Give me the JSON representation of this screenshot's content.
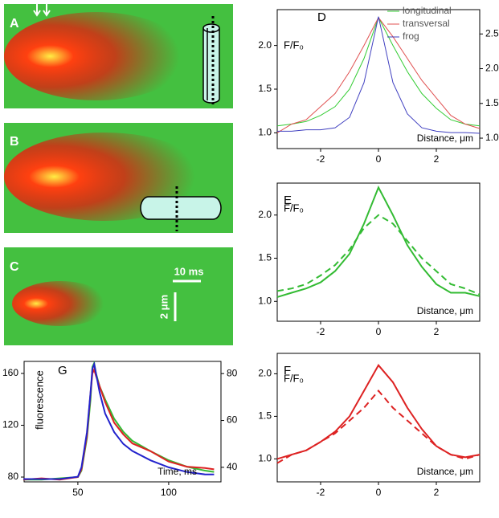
{
  "image_panels": {
    "labels": [
      "A",
      "B",
      "C"
    ],
    "time_scale": "10 ms",
    "space_scale": "2 μm"
  },
  "chart_data": [
    {
      "type": "line",
      "title": "D",
      "ylabel": "F/F₀",
      "xlabel": "Distance, μm",
      "legend": "upper right",
      "x": [
        -3.5,
        -3,
        -2.5,
        -2,
        -1.5,
        -1,
        -0.5,
        0,
        0.5,
        1,
        1.5,
        2,
        2.5,
        3,
        3.5
      ],
      "xlim": [
        -3.5,
        3.5
      ],
      "xticks": [
        -2,
        0,
        2
      ],
      "ylim": [
        0.82,
        2.41
      ],
      "yticks": [
        {
          "value": 1,
          "label": "1.0"
        },
        {
          "value": 1.5,
          "label": "1.5"
        },
        {
          "value": 2,
          "label": "2.0"
        }
      ],
      "y2lim": [
        0.85,
        2.85
      ],
      "y2ticks": [
        {
          "value": 1,
          "label": "1.0"
        },
        {
          "value": 1.5,
          "label": "1.5"
        },
        {
          "value": 2,
          "label": "2.0"
        },
        {
          "value": 2.5,
          "label": "2.5"
        }
      ],
      "series": [
        {
          "name": "longitudinal",
          "color": "#33cc33",
          "values": [
            1.08,
            1.1,
            1.13,
            1.2,
            1.3,
            1.5,
            1.85,
            2.32,
            2.0,
            1.7,
            1.45,
            1.28,
            1.15,
            1.1,
            1.08
          ]
        },
        {
          "name": "transversal",
          "color": "#e05050",
          "values": [
            1.0,
            1.1,
            1.15,
            1.3,
            1.45,
            1.7,
            2.0,
            2.32,
            2.1,
            1.85,
            1.6,
            1.4,
            1.2,
            1.1,
            1.05
          ]
        },
        {
          "name": "frog",
          "color": "#4040c0",
          "axis": "y2",
          "values": [
            1.1,
            1.1,
            1.12,
            1.12,
            1.15,
            1.3,
            1.8,
            2.75,
            1.8,
            1.35,
            1.15,
            1.1,
            1.08,
            1.08,
            1.07
          ]
        }
      ]
    },
    {
      "type": "line",
      "title": "E",
      "ylabel": "F/F₀",
      "xlabel": "Distance, μm",
      "x": [
        -3.5,
        -3,
        -2.5,
        -2,
        -1.5,
        -1,
        -0.5,
        0,
        0.5,
        1,
        1.5,
        2,
        2.5,
        3,
        3.5
      ],
      "xlim": [
        -3.5,
        3.5
      ],
      "xticks": [
        -2,
        0,
        2
      ],
      "ylim": [
        0.77,
        2.37
      ],
      "yticks": [
        {
          "value": 1,
          "label": "1.0"
        },
        {
          "value": 1.5,
          "label": "1.5"
        },
        {
          "value": 2,
          "label": "2.0"
        }
      ],
      "series": [
        {
          "color": "#33bb33",
          "values": [
            1.05,
            1.1,
            1.15,
            1.22,
            1.35,
            1.55,
            1.9,
            2.32,
            2.0,
            1.65,
            1.4,
            1.2,
            1.1,
            1.1,
            1.06
          ]
        },
        {
          "color": "#33bb33",
          "dashed": true,
          "values": [
            1.12,
            1.15,
            1.2,
            1.3,
            1.42,
            1.6,
            1.85,
            2.0,
            1.9,
            1.7,
            1.5,
            1.35,
            1.2,
            1.15,
            1.08
          ]
        }
      ]
    },
    {
      "type": "line",
      "title": "F",
      "ylabel": "F/F₀",
      "xlabel": "Distance, μm",
      "x": [
        -3.5,
        -3,
        -2.5,
        -2,
        -1.5,
        -1,
        -0.5,
        0,
        0.5,
        1,
        1.5,
        2,
        2.5,
        3,
        3.5
      ],
      "xlim": [
        -3.5,
        3.5
      ],
      "xticks": [
        -2,
        0,
        2
      ],
      "ylim": [
        0.73,
        2.24
      ],
      "yticks": [
        {
          "value": 1,
          "label": "1.0"
        },
        {
          "value": 1.5,
          "label": "1.5"
        },
        {
          "value": 2,
          "label": "2.0"
        }
      ],
      "series": [
        {
          "color": "#dd2222",
          "values": [
            1.0,
            1.05,
            1.1,
            1.2,
            1.32,
            1.5,
            1.8,
            2.1,
            1.9,
            1.6,
            1.35,
            1.15,
            1.05,
            1.02,
            1.05
          ]
        },
        {
          "color": "#dd2222",
          "dashed": true,
          "values": [
            0.95,
            1.05,
            1.1,
            1.2,
            1.3,
            1.45,
            1.6,
            1.8,
            1.6,
            1.45,
            1.3,
            1.15,
            1.05,
            1.0,
            1.05
          ]
        }
      ]
    },
    {
      "type": "line",
      "title": "G",
      "ylabel": "fluorescence",
      "xlabel": "Time, ms",
      "x": [
        20,
        30,
        40,
        50,
        52,
        55,
        57,
        58,
        59,
        60,
        62,
        65,
        70,
        75,
        80,
        90,
        100,
        110,
        120,
        125
      ],
      "xlim": [
        20.4,
        128.8
      ],
      "xticks": [
        50,
        100
      ],
      "ylim": [
        76.3,
        169.3
      ],
      "yticks": [
        80,
        120,
        160
      ],
      "y2lim": [
        33.8,
        85.2
      ],
      "y2ticks": [
        40,
        60,
        80
      ],
      "series": [
        {
          "color": "#33bb33",
          "values": [
            78,
            78,
            79,
            80,
            85,
            110,
            140,
            165,
            168,
            160,
            150,
            140,
            125,
            115,
            108,
            100,
            93,
            88,
            85,
            84
          ]
        },
        {
          "color": "#dd2222",
          "values": [
            78,
            79,
            78,
            80,
            86,
            112,
            145,
            160,
            163,
            158,
            150,
            138,
            122,
            113,
            106,
            100,
            92,
            88,
            87,
            86
          ]
        },
        {
          "color": "#2222cc",
          "axis": "y2",
          "values": [
            35,
            35,
            35,
            36,
            40,
            55,
            72,
            82,
            84,
            80,
            72,
            63,
            55,
            50,
            47,
            43,
            40,
            38,
            37,
            37
          ]
        }
      ]
    }
  ]
}
